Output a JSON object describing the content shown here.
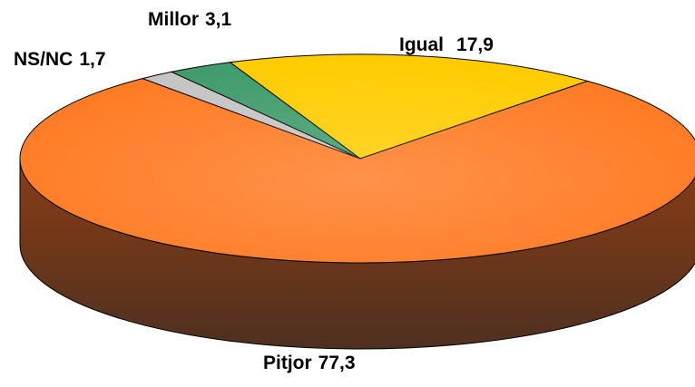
{
  "chart_data": {
    "type": "pie3d",
    "categories": [
      "Igual",
      "Pitjor",
      "NS/NC",
      "Millor"
    ],
    "values": [
      17.9,
      77.3,
      1.7,
      3.1
    ],
    "value_labels": [
      "17,9",
      "77,3",
      "1,7",
      "3,1"
    ],
    "colors": [
      "#ffcc00",
      "#ff7a22",
      "#c4c4c4",
      "#3f9b6b"
    ]
  }
}
